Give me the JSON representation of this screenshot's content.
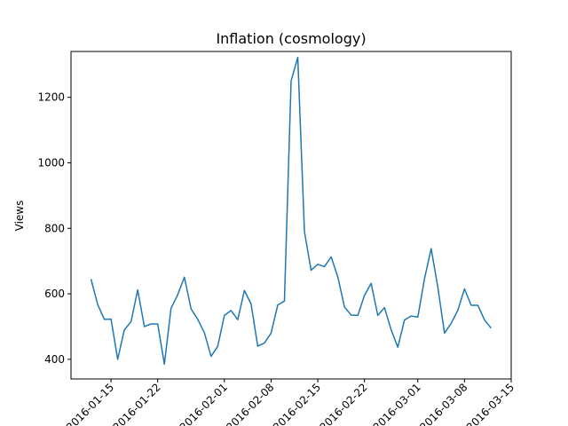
{
  "chart_data": {
    "type": "line",
    "title": "Inflation (cosmology)",
    "xlabel": "",
    "ylabel": "Views",
    "x_tick_labels": [
      "2016-01-15",
      "2016-01-22",
      "2016-02-01",
      "2016-02-08",
      "2016-02-15",
      "2016-02-22",
      "2016-03-01",
      "2016-03-08",
      "2016-03-15"
    ],
    "y_ticks": [
      400,
      600,
      800,
      1000,
      1200
    ],
    "ylim": [
      340,
      1340
    ],
    "grid": false,
    "color": "#1f77b4",
    "x": [
      "2016-01-12",
      "2016-01-13",
      "2016-01-14",
      "2016-01-15",
      "2016-01-16",
      "2016-01-17",
      "2016-01-18",
      "2016-01-19",
      "2016-01-20",
      "2016-01-21",
      "2016-01-22",
      "2016-01-23",
      "2016-01-24",
      "2016-01-25",
      "2016-01-26",
      "2016-01-27",
      "2016-01-28",
      "2016-01-29",
      "2016-01-30",
      "2016-01-31",
      "2016-02-01",
      "2016-02-02",
      "2016-02-03",
      "2016-02-04",
      "2016-02-05",
      "2016-02-06",
      "2016-02-07",
      "2016-02-08",
      "2016-02-09",
      "2016-02-10",
      "2016-02-11",
      "2016-02-12",
      "2016-02-13",
      "2016-02-14",
      "2016-02-15",
      "2016-02-16",
      "2016-02-17",
      "2016-02-18",
      "2016-02-19",
      "2016-02-20",
      "2016-02-21",
      "2016-02-22",
      "2016-02-23",
      "2016-02-24",
      "2016-02-25",
      "2016-02-26",
      "2016-02-27",
      "2016-02-28",
      "2016-02-29",
      "2016-03-01",
      "2016-03-02",
      "2016-03-03",
      "2016-03-04",
      "2016-03-05",
      "2016-03-06",
      "2016-03-07",
      "2016-03-08",
      "2016-03-09",
      "2016-03-10",
      "2016-03-11",
      "2016-03-12"
    ],
    "values": [
      645,
      567,
      522,
      523,
      400,
      490,
      515,
      612,
      500,
      508,
      508,
      385,
      556,
      597,
      651,
      554,
      522,
      481,
      409,
      440,
      534,
      549,
      521,
      610,
      569,
      440,
      450,
      480,
      566,
      578,
      1250,
      1322,
      790,
      672,
      690,
      683,
      713,
      652,
      560,
      535,
      534,
      595,
      632,
      534,
      558,
      490,
      437,
      520,
      532,
      529,
      646,
      738,
      620,
      480,
      510,
      550,
      615,
      565,
      565,
      520,
      495
    ]
  }
}
